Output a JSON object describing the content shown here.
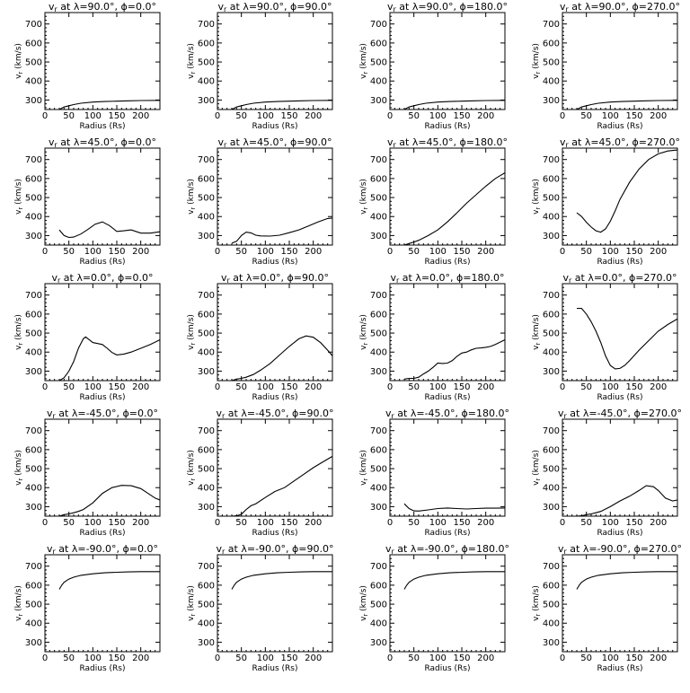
{
  "figure": {
    "xlabel": "Radius (Rs)",
    "ylabel": "vr (km/s)",
    "xlim": [
      0,
      240
    ],
    "ylim": [
      250,
      760
    ],
    "xticks": [
      0,
      50,
      100,
      150,
      200
    ],
    "yticks": [
      300,
      400,
      500,
      600,
      700
    ],
    "line_color": "#000000"
  },
  "chart_data": [
    {
      "type": "line",
      "title": "vr at λ=90.0°, ϕ=0.0°",
      "lambda": "90.0",
      "phi": "0.0",
      "xlabel": "Radius (Rs)",
      "ylabel": "vr (km/s)",
      "xlim": [
        0,
        240
      ],
      "ylim": [
        250,
        760
      ],
      "x": [
        30,
        40,
        50,
        60,
        75,
        100,
        125,
        150,
        175,
        200,
        240
      ],
      "y": [
        250,
        263,
        270,
        276,
        283,
        289,
        292,
        294,
        296,
        297,
        298
      ]
    },
    {
      "type": "line",
      "title": "vr at λ=90.0°, ϕ=90.0°",
      "lambda": "90.0",
      "phi": "90.0",
      "xlabel": "Radius (Rs)",
      "ylabel": "vr (km/s)",
      "xlim": [
        0,
        240
      ],
      "ylim": [
        250,
        760
      ],
      "x": [
        30,
        40,
        50,
        60,
        75,
        100,
        125,
        150,
        175,
        200,
        240
      ],
      "y": [
        250,
        263,
        270,
        276,
        283,
        289,
        292,
        294,
        296,
        297,
        298
      ]
    },
    {
      "type": "line",
      "title": "vr at λ=90.0°, ϕ=180.0°",
      "lambda": "90.0",
      "phi": "180.0",
      "xlabel": "Radius (Rs)",
      "ylabel": "vr (km/s)",
      "xlim": [
        0,
        240
      ],
      "ylim": [
        250,
        760
      ],
      "x": [
        30,
        40,
        50,
        60,
        75,
        100,
        125,
        150,
        175,
        200,
        240
      ],
      "y": [
        250,
        263,
        270,
        276,
        283,
        289,
        292,
        294,
        296,
        297,
        298
      ]
    },
    {
      "type": "line",
      "title": "vr at λ=90.0°, ϕ=270.0°",
      "lambda": "90.0",
      "phi": "270.0",
      "xlabel": "Radius (Rs)",
      "ylabel": "vr (km/s)",
      "xlim": [
        0,
        240
      ],
      "ylim": [
        250,
        760
      ],
      "x": [
        30,
        40,
        50,
        60,
        75,
        100,
        125,
        150,
        175,
        200,
        240
      ],
      "y": [
        250,
        263,
        270,
        276,
        283,
        289,
        292,
        294,
        296,
        297,
        298
      ]
    },
    {
      "type": "line",
      "title": "vr at λ=45.0°, ϕ=0.0°",
      "lambda": "45.0",
      "phi": "0.0",
      "xlabel": "Radius (Rs)",
      "ylabel": "vr (km/s)",
      "xlim": [
        0,
        240
      ],
      "ylim": [
        250,
        760
      ],
      "x": [
        30,
        40,
        50,
        60,
        75,
        90,
        105,
        120,
        135,
        150,
        165,
        180,
        200,
        220,
        240
      ],
      "y": [
        330,
        300,
        290,
        292,
        308,
        333,
        360,
        372,
        352,
        322,
        325,
        330,
        313,
        313,
        320
      ]
    },
    {
      "type": "line",
      "title": "vr at λ=45.0°, ϕ=90.0°",
      "lambda": "45.0",
      "phi": "90.0",
      "xlabel": "Radius (Rs)",
      "ylabel": "vr (km/s)",
      "xlim": [
        0,
        240
      ],
      "ylim": [
        250,
        760
      ],
      "x": [
        30,
        40,
        50,
        60,
        70,
        80,
        90,
        110,
        130,
        150,
        170,
        190,
        210,
        230,
        240
      ],
      "y": [
        260,
        270,
        300,
        318,
        314,
        302,
        298,
        297,
        302,
        315,
        330,
        350,
        372,
        390,
        392
      ]
    },
    {
      "type": "line",
      "title": "vr at λ=45.0°, ϕ=180.0°",
      "lambda": "45.0",
      "phi": "180.0",
      "xlabel": "Radius (Rs)",
      "ylabel": "vr (km/s)",
      "xlim": [
        0,
        240
      ],
      "ylim": [
        250,
        760
      ],
      "x": [
        30,
        40,
        50,
        60,
        80,
        100,
        120,
        140,
        160,
        180,
        200,
        220,
        240
      ],
      "y": [
        250,
        258,
        266,
        275,
        300,
        330,
        372,
        420,
        470,
        515,
        560,
        600,
        630
      ]
    },
    {
      "type": "line",
      "title": "vr at λ=45.0°, ϕ=270.0°",
      "lambda": "45.0",
      "phi": "270.0",
      "xlabel": "Radius (Rs)",
      "ylabel": "vr (km/s)",
      "xlim": [
        0,
        240
      ],
      "ylim": [
        250,
        760
      ],
      "x": [
        30,
        40,
        50,
        60,
        70,
        80,
        90,
        100,
        110,
        120,
        140,
        160,
        180,
        200,
        220,
        240
      ],
      "y": [
        420,
        400,
        370,
        345,
        325,
        318,
        335,
        375,
        430,
        490,
        580,
        650,
        700,
        730,
        745,
        750
      ]
    },
    {
      "type": "line",
      "title": "vr at λ=0.0°, ϕ=0.0°",
      "lambda": "0.0",
      "phi": "0.0",
      "xlabel": "Radius (Rs)",
      "ylabel": "vr (km/s)",
      "xlim": [
        0,
        240
      ],
      "ylim": [
        250,
        760
      ],
      "x": [
        30,
        40,
        50,
        60,
        70,
        80,
        85,
        90,
        100,
        110,
        120,
        130,
        140,
        150,
        165,
        180,
        200,
        220,
        240
      ],
      "y": [
        250,
        265,
        300,
        350,
        420,
        470,
        480,
        470,
        450,
        445,
        440,
        420,
        398,
        385,
        390,
        400,
        420,
        440,
        465
      ]
    },
    {
      "type": "line",
      "title": "vr at λ=0.0°, ϕ=90.0°",
      "lambda": "0.0",
      "phi": "90.0",
      "xlabel": "Radius (Rs)",
      "ylabel": "vr (km/s)",
      "xlim": [
        0,
        240
      ],
      "ylim": [
        250,
        760
      ],
      "x": [
        30,
        40,
        50,
        60,
        75,
        90,
        110,
        130,
        150,
        170,
        185,
        200,
        215,
        230,
        240
      ],
      "y": [
        250,
        258,
        262,
        268,
        282,
        305,
        340,
        385,
        430,
        470,
        485,
        478,
        450,
        410,
        380
      ]
    },
    {
      "type": "line",
      "title": "vr at λ=0.0°, ϕ=180.0°",
      "lambda": "0.0",
      "phi": "180.0",
      "xlabel": "Radius (Rs)",
      "ylabel": "vr (km/s)",
      "xlim": [
        0,
        240
      ],
      "ylim": [
        250,
        760
      ],
      "x": [
        30,
        40,
        50,
        60,
        70,
        80,
        90,
        100,
        110,
        120,
        130,
        140,
        150,
        160,
        170,
        180,
        190,
        200,
        210,
        220,
        240
      ],
      "y": [
        258,
        262,
        262,
        268,
        285,
        300,
        320,
        342,
        340,
        342,
        355,
        378,
        395,
        400,
        412,
        420,
        422,
        425,
        430,
        440,
        465
      ]
    },
    {
      "type": "line",
      "title": "vr at λ=0.0°, ϕ=270.0°",
      "lambda": "0.0",
      "phi": "270.0",
      "xlabel": "Radius (Rs)",
      "ylabel": "vr (km/s)",
      "xlim": [
        0,
        240
      ],
      "ylim": [
        250,
        760
      ],
      "x": [
        30,
        40,
        50,
        60,
        70,
        80,
        90,
        100,
        110,
        120,
        130,
        140,
        160,
        180,
        200,
        220,
        240
      ],
      "y": [
        630,
        630,
        600,
        560,
        510,
        450,
        380,
        330,
        312,
        314,
        330,
        355,
        410,
        460,
        510,
        545,
        575
      ]
    },
    {
      "type": "line",
      "title": "vr at λ=-45.0°, ϕ=0.0°",
      "lambda": "-45.0",
      "phi": "0.0",
      "xlabel": "Radius (Rs)",
      "ylabel": "vr (km/s)",
      "xlim": [
        0,
        240
      ],
      "ylim": [
        250,
        760
      ],
      "x": [
        30,
        40,
        50,
        60,
        70,
        80,
        100,
        120,
        140,
        160,
        180,
        200,
        215,
        230,
        240
      ],
      "y": [
        250,
        258,
        262,
        268,
        275,
        285,
        320,
        370,
        400,
        412,
        410,
        395,
        370,
        345,
        335
      ]
    },
    {
      "type": "line",
      "title": "vr at λ=-45.0°, ϕ=90.0°",
      "lambda": "-45.0",
      "phi": "90.0",
      "xlabel": "Radius (Rs)",
      "ylabel": "vr (km/s)",
      "xlim": [
        0,
        240
      ],
      "ylim": [
        250,
        760
      ],
      "x": [
        30,
        40,
        50,
        60,
        70,
        80,
        100,
        120,
        140,
        160,
        180,
        200,
        220,
        240
      ],
      "y": [
        250,
        252,
        260,
        285,
        305,
        315,
        348,
        380,
        400,
        435,
        470,
        505,
        535,
        565
      ]
    },
    {
      "type": "line",
      "title": "vr at λ=-45.0°, ϕ=180.0°",
      "lambda": "-45.0",
      "phi": "180.0",
      "xlabel": "Radius (Rs)",
      "ylabel": "vr (km/s)",
      "xlim": [
        0,
        240
      ],
      "ylim": [
        250,
        760
      ],
      "x": [
        30,
        40,
        50,
        60,
        80,
        100,
        120,
        140,
        160,
        180,
        200,
        220,
        240
      ],
      "y": [
        315,
        290,
        278,
        277,
        283,
        290,
        293,
        290,
        288,
        290,
        292,
        292,
        293
      ]
    },
    {
      "type": "line",
      "title": "vr at λ=-45.0°, ϕ=270.0°",
      "lambda": "-45.0",
      "phi": "270.0",
      "xlabel": "Radius (Rs)",
      "ylabel": "vr (km/s)",
      "xlim": [
        0,
        240
      ],
      "ylim": [
        250,
        760
      ],
      "x": [
        30,
        40,
        50,
        60,
        70,
        80,
        100,
        120,
        140,
        160,
        175,
        190,
        200,
        215,
        230,
        240
      ],
      "y": [
        250,
        252,
        258,
        262,
        268,
        275,
        300,
        330,
        355,
        385,
        410,
        405,
        385,
        345,
        330,
        335
      ]
    },
    {
      "type": "line",
      "title": "vr at λ=-90.0°, ϕ=0.0°",
      "lambda": "-90.0",
      "phi": "0.0",
      "xlabel": "Radius (Rs)",
      "ylabel": "vr (km/s)",
      "xlim": [
        0,
        240
      ],
      "ylim": [
        250,
        760
      ],
      "x": [
        30,
        35,
        40,
        50,
        60,
        75,
        100,
        125,
        150,
        175,
        200,
        240
      ],
      "y": [
        578,
        600,
        615,
        632,
        642,
        652,
        660,
        665,
        668,
        670,
        671,
        671
      ]
    },
    {
      "type": "line",
      "title": "vr at λ=-90.0°, ϕ=90.0°",
      "lambda": "-90.0",
      "phi": "90.0",
      "xlabel": "Radius (Rs)",
      "ylabel": "vr (km/s)",
      "xlim": [
        0,
        240
      ],
      "ylim": [
        250,
        760
      ],
      "x": [
        30,
        35,
        40,
        50,
        60,
        75,
        100,
        125,
        150,
        175,
        200,
        240
      ],
      "y": [
        578,
        600,
        615,
        632,
        642,
        652,
        660,
        665,
        668,
        670,
        671,
        671
      ]
    },
    {
      "type": "line",
      "title": "vr at λ=-90.0°, ϕ=180.0°",
      "lambda": "-90.0",
      "phi": "180.0",
      "xlabel": "Radius (Rs)",
      "ylabel": "vr (km/s)",
      "xlim": [
        0,
        240
      ],
      "ylim": [
        250,
        760
      ],
      "x": [
        30,
        35,
        40,
        50,
        60,
        75,
        100,
        125,
        150,
        175,
        200,
        240
      ],
      "y": [
        578,
        600,
        615,
        632,
        642,
        652,
        660,
        665,
        668,
        670,
        671,
        671
      ]
    },
    {
      "type": "line",
      "title": "vr at λ=-90.0°, ϕ=270.0°",
      "lambda": "-90.0",
      "phi": "270.0",
      "xlabel": "Radius (Rs)",
      "ylabel": "vr (km/s)",
      "xlim": [
        0,
        240
      ],
      "ylim": [
        250,
        760
      ],
      "x": [
        30,
        35,
        40,
        50,
        60,
        75,
        100,
        125,
        150,
        175,
        200,
        240
      ],
      "y": [
        578,
        600,
        615,
        632,
        642,
        652,
        660,
        665,
        668,
        670,
        671,
        671
      ]
    }
  ]
}
